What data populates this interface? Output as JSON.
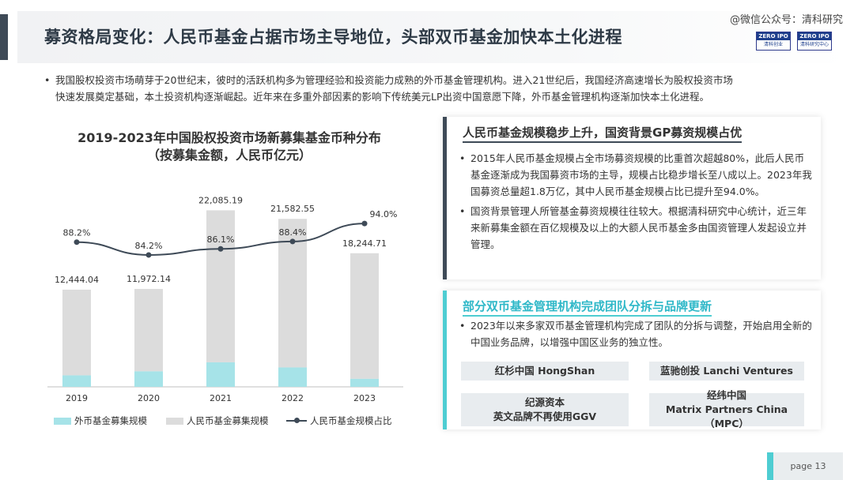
{
  "header": {
    "title": "募资格局变化：人民币基金占据市场主导地位，头部双币基金加快本土化进程",
    "watermark": "@微信公众号：清科研究",
    "logo1": {
      "top": "ZERO IPO",
      "bottom": "清科创业"
    },
    "logo2": {
      "top": "ZERO IPO",
      "bottom": "清科研究中心"
    }
  },
  "intro": {
    "line1": "我国股权投资市场萌芽于20世纪末，彼时的活跃机构多为管理经验和投资能力成熟的外币基金管理机构。进入21世纪后，我国经济高速增长为股权投资市场",
    "line2": "快速发展奠定基础，本土投资机构逐渐崛起。近年来在多重外部因素的影响下传统美元LP出资中国意愿下降，外币基金管理机构逐渐加快本土化进程。"
  },
  "chart_data": {
    "type": "bar",
    "title": "2019-2023年中国股权投资市场新募集基金币种分布",
    "subtitle": "（按募集金额，人民币亿元）",
    "categories": [
      "2019",
      "2020",
      "2021",
      "2022",
      "2023"
    ],
    "series": [
      {
        "name": "外币基金募集规模",
        "type": "bar",
        "color": "#a6e3e8",
        "values": [
          1670,
          2250,
          3559,
          2818,
          1162
        ]
      },
      {
        "name": "人民币基金募集规模",
        "type": "bar",
        "color": "#dcdcdc",
        "values": [
          12444.04,
          11972.14,
          22085.19,
          21582.55,
          18244.71
        ]
      },
      {
        "name": "人民币基金规模占比",
        "type": "line",
        "color": "#3e4a57",
        "values": [
          88.2,
          84.2,
          86.1,
          88.4,
          94.0
        ],
        "labels": [
          "88.2%",
          "84.2%",
          "86.1%",
          "88.4%",
          "94.0%"
        ]
      }
    ],
    "bar_labels": [
      "12,444.04",
      "11,972.14",
      "22,085.19",
      "21,582.55",
      "18,244.71"
    ],
    "ylim": [
      0,
      25000
    ]
  },
  "panel1": {
    "heading": "人民币基金规模稳步上升，国资背景GP募资规模占优",
    "bullet1": "2015年人民币基金规模占全市场募资规模的比重首次超越80%，此后人民币基金逐渐成为我国募资市场的主导，规模占比稳步增长至八成以上。2023年我国募资总量超1.8万亿，其中人民币基金规模占比已提升至94.0%。",
    "bullet2": "国资背景管理人所管基金募资规模往往较大。根据清科研究中心统计，近三年来新募集金额在百亿规模及以上的大额人民币基金多由国资管理人发起设立并管理。"
  },
  "panel2": {
    "heading": "部分双币基金管理机构完成团队分拆与品牌更新",
    "bullet1": "2023年以来多家双币基金管理机构完成了团队的分拆与调整，开始启用全新的中国业务品牌，以增强中国区业务的独立性。",
    "brands": [
      {
        "line1": "红杉中国   HongShan",
        "line2": ""
      },
      {
        "line1": "蓝驰创投  Lanchi Ventures",
        "line2": ""
      },
      {
        "line1": "纪源资本",
        "line2": "英文品牌不再使用GGV"
      },
      {
        "line1": "经纬中国",
        "line2": "Matrix Partners China（MPC）"
      }
    ]
  },
  "footer": {
    "page": "page   13"
  }
}
